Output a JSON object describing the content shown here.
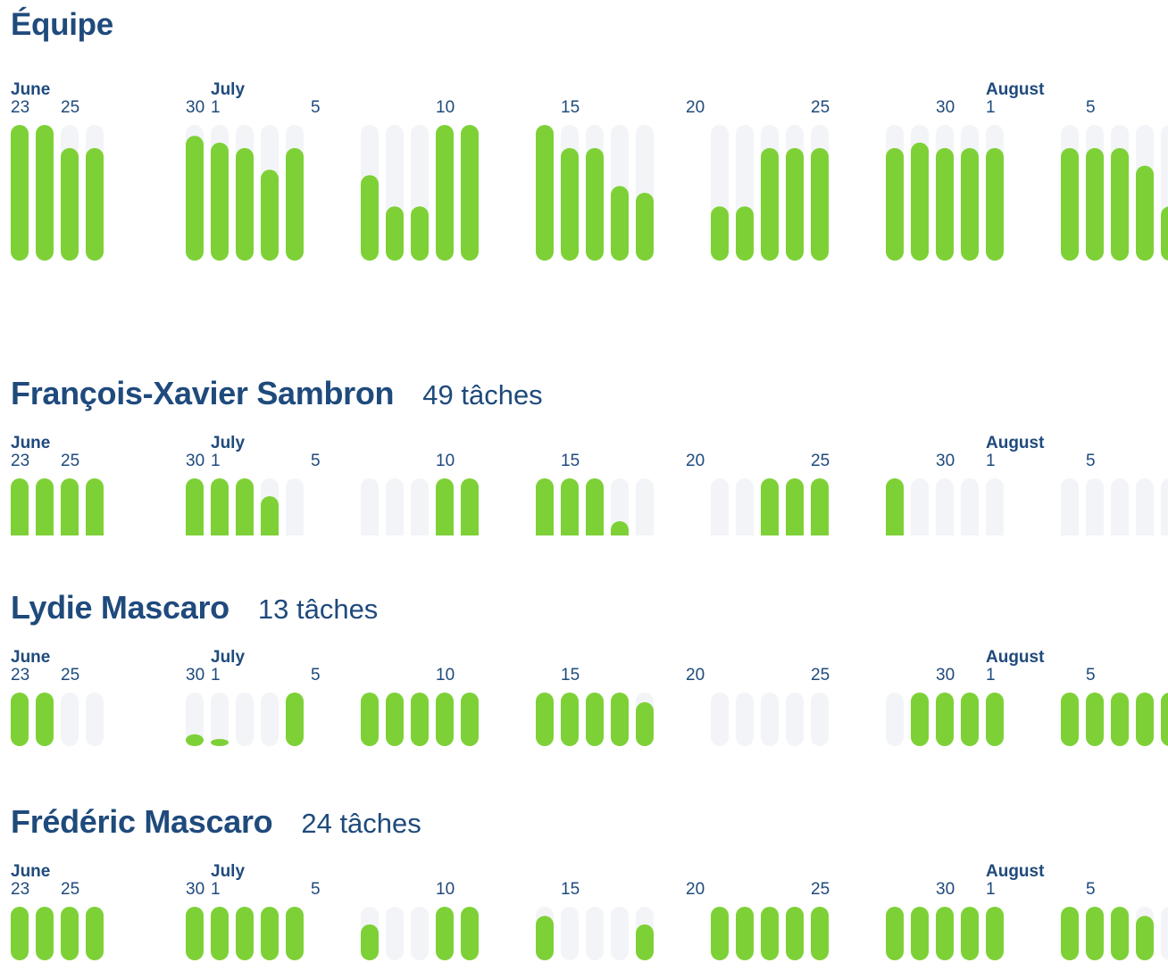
{
  "colors": {
    "heading": "#1f4a7c",
    "bar": "#7dd136",
    "track": "#f3f4f8",
    "label": "#1f4a7c"
  },
  "team": {
    "title": "Équipe"
  },
  "people": [
    {
      "name": "François-Xavier Sambron",
      "count": "49 tâches"
    },
    {
      "name": "Lydie Mascaro",
      "count": "13 tâches"
    },
    {
      "name": "Frédéric Mascaro",
      "count": "24 tâches"
    }
  ],
  "chart_data": [
    {
      "type": "bar",
      "id": "team",
      "month_labels": [
        {
          "label": "June",
          "day": "2025-06-23"
        },
        {
          "label": "July",
          "day": "2025-07-01"
        },
        {
          "label": "August",
          "day": "2025-08-01"
        }
      ],
      "day_tick_labels": [
        {
          "label": "23",
          "day": "2025-06-23"
        },
        {
          "label": "25",
          "day": "2025-06-25"
        },
        {
          "label": "30",
          "day": "2025-06-30"
        },
        {
          "label": "1",
          "day": "2025-07-01"
        },
        {
          "label": "5",
          "day": "2025-07-05"
        },
        {
          "label": "10",
          "day": "2025-07-10"
        },
        {
          "label": "15",
          "day": "2025-07-15"
        },
        {
          "label": "20",
          "day": "2025-07-20"
        },
        {
          "label": "25",
          "day": "2025-07-25"
        },
        {
          "label": "30",
          "day": "2025-07-30"
        },
        {
          "label": "1",
          "day": "2025-08-01"
        },
        {
          "label": "5",
          "day": "2025-08-05"
        }
      ],
      "categories": [
        "2025-06-23",
        "2025-06-24",
        "2025-06-25",
        "2025-06-26",
        "2025-06-30",
        "2025-07-01",
        "2025-07-02",
        "2025-07-03",
        "2025-07-04",
        "2025-07-07",
        "2025-07-08",
        "2025-07-09",
        "2025-07-10",
        "2025-07-11",
        "2025-07-14",
        "2025-07-15",
        "2025-07-16",
        "2025-07-17",
        "2025-07-18",
        "2025-07-21",
        "2025-07-22",
        "2025-07-23",
        "2025-07-24",
        "2025-07-25",
        "2025-07-28",
        "2025-07-29",
        "2025-07-30",
        "2025-07-31",
        "2025-08-01",
        "2025-08-04",
        "2025-08-05",
        "2025-08-06",
        "2025-08-07",
        "2025-08-08"
      ],
      "values": [
        1.0,
        1.0,
        0.83,
        0.83,
        0.92,
        0.87,
        0.83,
        0.67,
        0.83,
        0.63,
        0.4,
        0.4,
        1.0,
        1.0,
        1.0,
        0.83,
        0.83,
        0.55,
        0.5,
        0.4,
        0.4,
        0.83,
        0.83,
        0.83,
        0.83,
        0.87,
        0.83,
        0.83,
        0.83,
        0.83,
        0.83,
        0.83,
        0.7,
        0.4
      ],
      "ylim": [
        0,
        1
      ]
    },
    {
      "type": "bar",
      "id": "person-0",
      "month_labels": [
        {
          "label": "June",
          "day": "2025-06-23"
        },
        {
          "label": "July",
          "day": "2025-07-01"
        },
        {
          "label": "August",
          "day": "2025-08-01"
        }
      ],
      "day_tick_labels": [
        {
          "label": "23",
          "day": "2025-06-23"
        },
        {
          "label": "25",
          "day": "2025-06-25"
        },
        {
          "label": "30",
          "day": "2025-06-30"
        },
        {
          "label": "1",
          "day": "2025-07-01"
        },
        {
          "label": "5",
          "day": "2025-07-05"
        },
        {
          "label": "10",
          "day": "2025-07-10"
        },
        {
          "label": "15",
          "day": "2025-07-15"
        },
        {
          "label": "20",
          "day": "2025-07-20"
        },
        {
          "label": "25",
          "day": "2025-07-25"
        },
        {
          "label": "30",
          "day": "2025-07-30"
        },
        {
          "label": "1",
          "day": "2025-08-01"
        },
        {
          "label": "5",
          "day": "2025-08-05"
        }
      ],
      "categories": [
        "2025-06-23",
        "2025-06-24",
        "2025-06-25",
        "2025-06-26",
        "2025-06-30",
        "2025-07-01",
        "2025-07-02",
        "2025-07-03",
        "2025-07-04",
        "2025-07-07",
        "2025-07-08",
        "2025-07-09",
        "2025-07-10",
        "2025-07-11",
        "2025-07-14",
        "2025-07-15",
        "2025-07-16",
        "2025-07-17",
        "2025-07-18",
        "2025-07-21",
        "2025-07-22",
        "2025-07-23",
        "2025-07-24",
        "2025-07-25",
        "2025-07-28",
        "2025-07-29",
        "2025-07-30",
        "2025-07-31",
        "2025-08-01",
        "2025-08-04",
        "2025-08-05",
        "2025-08-06",
        "2025-08-07",
        "2025-08-08"
      ],
      "values": [
        1,
        1,
        1,
        1,
        1,
        1,
        1,
        0.75,
        0,
        0,
        0,
        0,
        1,
        1,
        1,
        1,
        1,
        0.4,
        0,
        0,
        0,
        1,
        1,
        1,
        1,
        0.08,
        0,
        0,
        0,
        0,
        0,
        0,
        0,
        0
      ],
      "ylim": [
        0,
        1
      ]
    },
    {
      "type": "bar",
      "id": "person-1",
      "month_labels": [
        {
          "label": "June",
          "day": "2025-06-23"
        },
        {
          "label": "July",
          "day": "2025-07-01"
        },
        {
          "label": "August",
          "day": "2025-08-01"
        }
      ],
      "day_tick_labels": [
        {
          "label": "23",
          "day": "2025-06-23"
        },
        {
          "label": "25",
          "day": "2025-06-25"
        },
        {
          "label": "30",
          "day": "2025-06-30"
        },
        {
          "label": "1",
          "day": "2025-07-01"
        },
        {
          "label": "5",
          "day": "2025-07-05"
        },
        {
          "label": "10",
          "day": "2025-07-10"
        },
        {
          "label": "15",
          "day": "2025-07-15"
        },
        {
          "label": "20",
          "day": "2025-07-20"
        },
        {
          "label": "25",
          "day": "2025-07-25"
        },
        {
          "label": "30",
          "day": "2025-07-30"
        },
        {
          "label": "1",
          "day": "2025-08-01"
        },
        {
          "label": "5",
          "day": "2025-08-05"
        }
      ],
      "categories": [
        "2025-06-23",
        "2025-06-24",
        "2025-06-25",
        "2025-06-26",
        "2025-06-30",
        "2025-07-01",
        "2025-07-02",
        "2025-07-03",
        "2025-07-04",
        "2025-07-07",
        "2025-07-08",
        "2025-07-09",
        "2025-07-10",
        "2025-07-11",
        "2025-07-14",
        "2025-07-15",
        "2025-07-16",
        "2025-07-17",
        "2025-07-18",
        "2025-07-21",
        "2025-07-22",
        "2025-07-23",
        "2025-07-24",
        "2025-07-25",
        "2025-07-28",
        "2025-07-29",
        "2025-07-30",
        "2025-07-31",
        "2025-08-01",
        "2025-08-04",
        "2025-08-05",
        "2025-08-06",
        "2025-08-07",
        "2025-08-08"
      ],
      "values": [
        1,
        1,
        0,
        0,
        0.22,
        0.1,
        0,
        0,
        1,
        1,
        1,
        1,
        1,
        1,
        1,
        1,
        1,
        1,
        0.82,
        0,
        0,
        0,
        0,
        0,
        0,
        1,
        1,
        1,
        1,
        1,
        1,
        1,
        1,
        1
      ],
      "ylim": [
        0,
        1
      ]
    },
    {
      "type": "bar",
      "id": "person-2",
      "month_labels": [
        {
          "label": "June",
          "day": "2025-06-23"
        },
        {
          "label": "July",
          "day": "2025-07-01"
        },
        {
          "label": "August",
          "day": "2025-08-01"
        }
      ],
      "day_tick_labels": [
        {
          "label": "23",
          "day": "2025-06-23"
        },
        {
          "label": "25",
          "day": "2025-06-25"
        },
        {
          "label": "30",
          "day": "2025-06-30"
        },
        {
          "label": "1",
          "day": "2025-07-01"
        },
        {
          "label": "5",
          "day": "2025-07-05"
        },
        {
          "label": "10",
          "day": "2025-07-10"
        },
        {
          "label": "15",
          "day": "2025-07-15"
        },
        {
          "label": "20",
          "day": "2025-07-20"
        },
        {
          "label": "25",
          "day": "2025-07-25"
        },
        {
          "label": "30",
          "day": "2025-07-30"
        },
        {
          "label": "1",
          "day": "2025-08-01"
        },
        {
          "label": "5",
          "day": "2025-08-05"
        }
      ],
      "categories": [
        "2025-06-23",
        "2025-06-24",
        "2025-06-25",
        "2025-06-26",
        "2025-06-30",
        "2025-07-01",
        "2025-07-02",
        "2025-07-03",
        "2025-07-04",
        "2025-07-07",
        "2025-07-08",
        "2025-07-09",
        "2025-07-10",
        "2025-07-11",
        "2025-07-14",
        "2025-07-15",
        "2025-07-16",
        "2025-07-17",
        "2025-07-18",
        "2025-07-21",
        "2025-07-22",
        "2025-07-23",
        "2025-07-24",
        "2025-07-25",
        "2025-07-28",
        "2025-07-29",
        "2025-07-30",
        "2025-07-31",
        "2025-08-01",
        "2025-08-04",
        "2025-08-05",
        "2025-08-06",
        "2025-08-07",
        "2025-08-08"
      ],
      "values": [
        1,
        1,
        1,
        1,
        1,
        1,
        1,
        1,
        1,
        0.67,
        0,
        0,
        1,
        1,
        0.83,
        0,
        0,
        0,
        0.67,
        1,
        1,
        1,
        1,
        1,
        1,
        1,
        1,
        1,
        1,
        1,
        1,
        1,
        0.83,
        0
      ],
      "ylim": [
        0,
        1
      ]
    }
  ]
}
